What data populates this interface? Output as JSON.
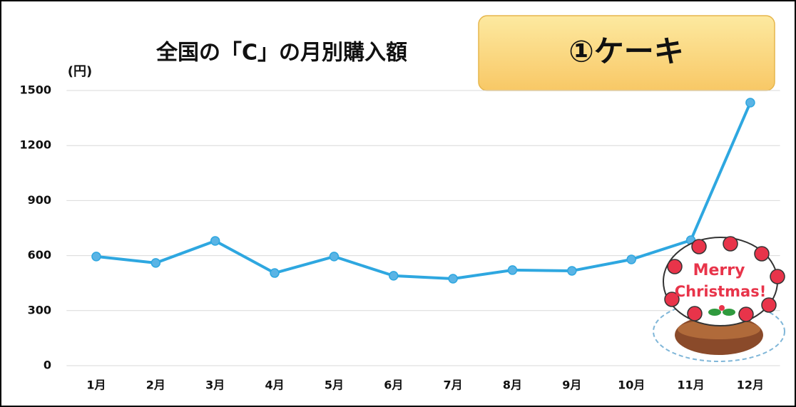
{
  "chart_data": {
    "type": "line",
    "title": "全国の「C」の月別購入額",
    "y_unit_label": "(円)",
    "badge": "①ケーキ",
    "annotations": [
      "Merry",
      "Christmas!"
    ],
    "categories": [
      "1月",
      "2月",
      "3月",
      "4月",
      "5月",
      "6月",
      "7月",
      "8月",
      "9月",
      "10月",
      "11月",
      "12月"
    ],
    "values": [
      595,
      560,
      680,
      505,
      595,
      490,
      474,
      521,
      517,
      579,
      684,
      1434
    ],
    "color": "#2ea7e0",
    "ylim": [
      0,
      1500
    ],
    "yticks": [
      0,
      300,
      600,
      900,
      1200,
      1500
    ],
    "grid": true
  }
}
